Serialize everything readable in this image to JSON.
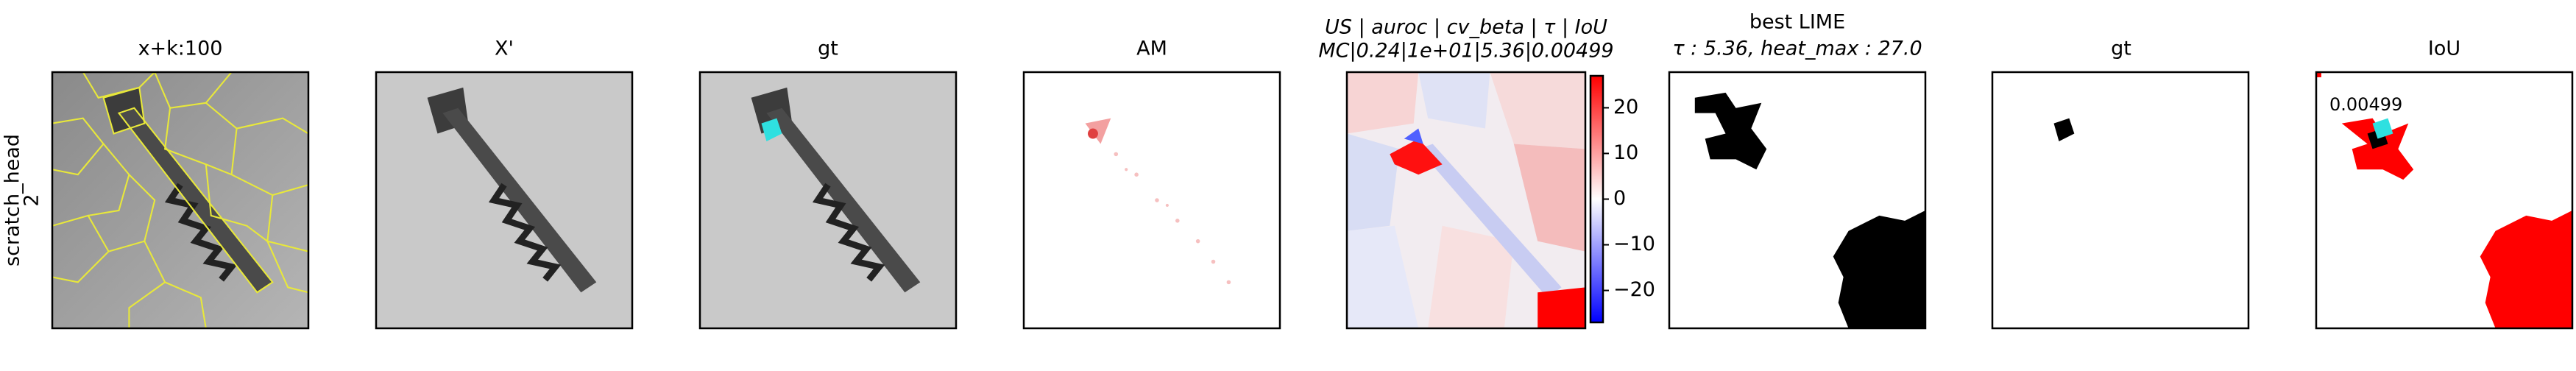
{
  "row_label": [
    "scratch_head",
    "2"
  ],
  "panels": [
    {
      "title": "x+k:100"
    },
    {
      "title": "X'"
    },
    {
      "title": "gt"
    },
    {
      "title": "AM"
    },
    {
      "title_lines": [
        "US | auroc | cv_beta | τ | IoU",
        "MC|0.24|1e+01|5.36|0.00499"
      ]
    },
    {
      "title_lines": [
        "best LIME",
        "τ : 5.36, heat_max : 27.0"
      ]
    },
    {
      "title": "gt"
    },
    {
      "title": "IoU",
      "annotation": "0.00499"
    }
  ],
  "colorbar": {
    "lim": [
      -27,
      27
    ],
    "ticks": [
      20,
      10,
      0,
      {
        "value": -10,
        "label": "−10"
      },
      {
        "value": -20,
        "label": "−20"
      }
    ]
  }
}
